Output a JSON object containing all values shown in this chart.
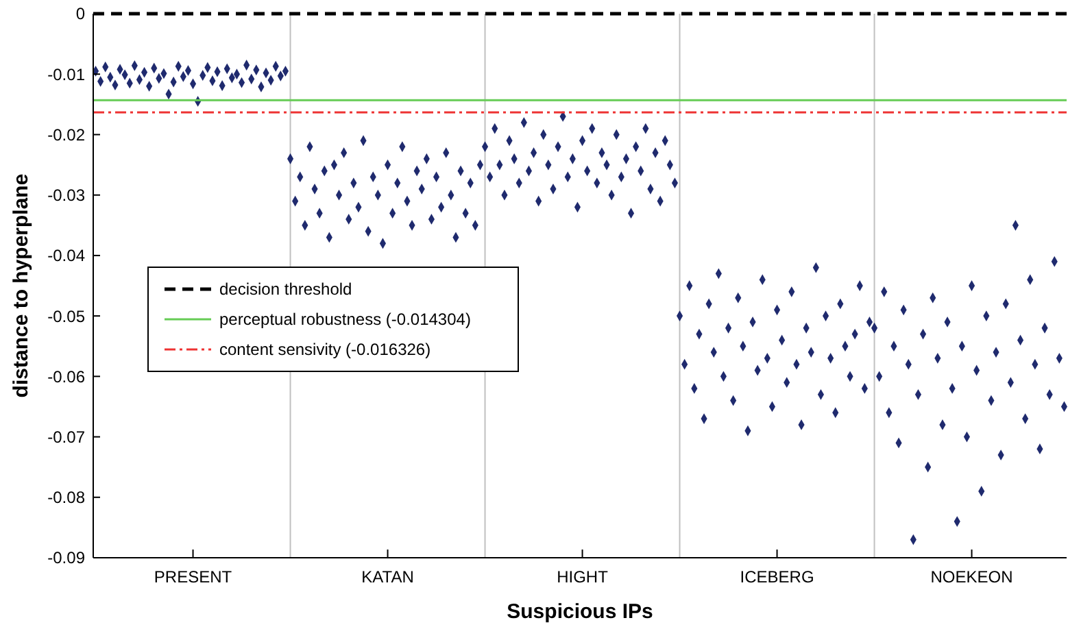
{
  "chart_data": {
    "type": "scatter",
    "xlabel": "Suspicious IPs",
    "ylabel": "distance to hyperplane",
    "categories": [
      null,
      null,
      null,
      null,
      null,
      null,
      null,
      null,
      null,
      null,
      null,
      null,
      null,
      null,
      null,
      null,
      null,
      null,
      null,
      null,
      "PRESENT",
      null,
      null,
      null,
      null,
      null,
      null,
      null,
      null,
      null,
      null,
      null,
      null,
      null,
      null,
      null,
      null,
      null,
      null,
      null,
      null,
      null,
      null,
      null,
      null,
      null,
      null,
      null,
      null,
      null,
      null,
      null,
      null,
      null,
      null,
      null,
      null,
      null,
      null,
      null,
      "KATAN",
      null,
      null,
      null,
      null,
      null,
      null,
      null,
      null,
      null,
      null,
      null,
      null,
      null,
      null,
      null,
      null,
      null,
      null,
      null,
      null,
      null,
      null,
      null,
      null,
      null,
      null,
      null,
      null,
      null,
      null,
      null,
      null,
      null,
      null,
      null,
      null,
      null,
      null,
      null,
      "HIGHT",
      null,
      null,
      null,
      null,
      null,
      null,
      null,
      null,
      null,
      null,
      null,
      null,
      null,
      null,
      null,
      null,
      null,
      null,
      null,
      null,
      null,
      null,
      null,
      null,
      null,
      null,
      null,
      null,
      null,
      null,
      null,
      null,
      null,
      null,
      null,
      null,
      null,
      null,
      null,
      "ICEBERG",
      null,
      null,
      null,
      null,
      null,
      null,
      null,
      null,
      null,
      null,
      null,
      null,
      null,
      null,
      null,
      null,
      null,
      null,
      null,
      null,
      null,
      null,
      null,
      null,
      null,
      null,
      null,
      null,
      null,
      null,
      null,
      null,
      null,
      null,
      null,
      null,
      null,
      null,
      null,
      "NOEKEON",
      null,
      null,
      null,
      null,
      null,
      null,
      null,
      null,
      null,
      null,
      null,
      null,
      null,
      null,
      null,
      null,
      null,
      null,
      null
    ],
    "ylim": [
      -0.09,
      0
    ],
    "yticks": [
      -0.09,
      -0.08,
      -0.07,
      -0.06,
      -0.05,
      -0.04,
      -0.03,
      -0.02,
      -0.01,
      0
    ],
    "marker": "diamond",
    "legend": "left",
    "ref_lines": [
      {
        "axis": "y",
        "value": 0,
        "label": "decision threshold",
        "color": "#000000",
        "line_style": "dashed"
      },
      {
        "axis": "y",
        "value": -0.014304,
        "label": "perceptual robustness (-0.014304)",
        "color": "#66cc55",
        "line_style": "solid"
      },
      {
        "axis": "y",
        "value": -0.016326,
        "label": "content sensivity (-0.016326)",
        "color": "#ee3333",
        "line_style": "dashdot"
      }
    ],
    "series": [
      {
        "color": "#1f2a6e",
        "values": [
          -0.0095,
          -0.0112,
          -0.0088,
          -0.0105,
          -0.0118,
          -0.0092,
          -0.0101,
          -0.0115,
          -0.0086,
          -0.0109,
          -0.0097,
          -0.012,
          -0.009,
          -0.0107,
          -0.0099,
          -0.0133,
          -0.0113,
          -0.0087,
          -0.0104,
          -0.0094,
          -0.0116,
          -0.0145,
          -0.0102,
          -0.0089,
          -0.0111,
          -0.0096,
          -0.0119,
          -0.0091,
          -0.0106,
          -0.01,
          -0.0114,
          -0.0085,
          -0.0108,
          -0.0093,
          -0.0121,
          -0.0098,
          -0.011,
          -0.0087,
          -0.0103,
          -0.0095,
          -0.024,
          -0.031,
          -0.027,
          -0.035,
          -0.022,
          -0.029,
          -0.033,
          -0.026,
          -0.037,
          -0.025,
          -0.03,
          -0.023,
          -0.034,
          -0.028,
          -0.032,
          -0.021,
          -0.036,
          -0.027,
          -0.03,
          -0.038,
          -0.025,
          -0.033,
          -0.028,
          -0.022,
          -0.031,
          -0.035,
          -0.026,
          -0.029,
          -0.024,
          -0.034,
          -0.027,
          -0.032,
          -0.023,
          -0.03,
          -0.037,
          -0.026,
          -0.033,
          -0.028,
          -0.035,
          -0.025,
          -0.022,
          -0.027,
          -0.019,
          -0.025,
          -0.03,
          -0.021,
          -0.024,
          -0.028,
          -0.018,
          -0.026,
          -0.023,
          -0.031,
          -0.02,
          -0.025,
          -0.029,
          -0.022,
          -0.017,
          -0.027,
          -0.024,
          -0.032,
          -0.021,
          -0.026,
          -0.019,
          -0.028,
          -0.023,
          -0.025,
          -0.03,
          -0.02,
          -0.027,
          -0.024,
          -0.033,
          -0.022,
          -0.026,
          -0.019,
          -0.029,
          -0.023,
          -0.031,
          -0.021,
          -0.025,
          -0.028,
          -0.05,
          -0.058,
          -0.045,
          -0.062,
          -0.053,
          -0.067,
          -0.048,
          -0.056,
          -0.043,
          -0.06,
          -0.052,
          -0.064,
          -0.047,
          -0.055,
          -0.069,
          -0.051,
          -0.059,
          -0.044,
          -0.057,
          -0.065,
          -0.049,
          -0.054,
          -0.061,
          -0.046,
          -0.058,
          -0.068,
          -0.052,
          -0.056,
          -0.042,
          -0.063,
          -0.05,
          -0.057,
          -0.066,
          -0.048,
          -0.055,
          -0.06,
          -0.053,
          -0.045,
          -0.062,
          -0.051,
          -0.052,
          -0.06,
          -0.046,
          -0.066,
          -0.055,
          -0.071,
          -0.049,
          -0.058,
          -0.087,
          -0.063,
          -0.053,
          -0.075,
          -0.047,
          -0.057,
          -0.068,
          -0.051,
          -0.062,
          -0.084,
          -0.055,
          -0.07,
          -0.045,
          -0.059,
          -0.079,
          -0.05,
          -0.064,
          -0.056,
          -0.073,
          -0.048,
          -0.061,
          -0.035,
          -0.054,
          -0.067,
          -0.044,
          -0.058,
          -0.072,
          -0.052,
          -0.063,
          -0.041,
          -0.057,
          -0.065
        ]
      }
    ]
  }
}
